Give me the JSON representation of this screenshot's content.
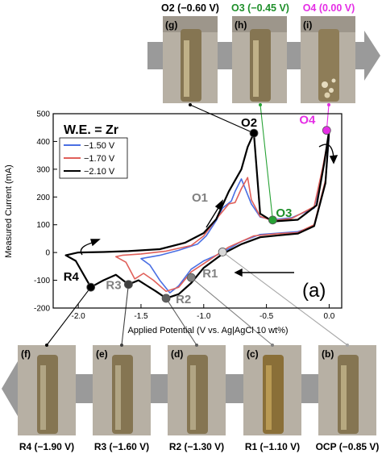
{
  "chart_data": {
    "type": "line",
    "panel_label": "(a)",
    "xlabel": "Applied Potential (V vs. Ag|AgCl 10 wt%)",
    "ylabel": "Measured Current (mA)",
    "xlim": [
      -2.2,
      0.1
    ],
    "ylim": [
      -200,
      500
    ],
    "x_ticks": [
      -2.0,
      -1.5,
      -1.0,
      -0.5,
      0.0
    ],
    "x_tick_labels": [
      "-2.0",
      "-1.5",
      "-1.0",
      "-0.5",
      "0.0"
    ],
    "y_ticks": [
      -200,
      -100,
      0,
      100,
      200,
      300,
      400,
      500
    ],
    "y_tick_labels": [
      "-200",
      "-100",
      "0",
      "100",
      "200",
      "300",
      "400",
      "500"
    ],
    "grid": false,
    "legend_title": "W.E. = Zr",
    "legend_position": "top-left",
    "series": [
      {
        "name": "−1.50 V",
        "color": "#4a6fe3",
        "points": [
          [
            0.0,
            420
          ],
          [
            -0.05,
            300
          ],
          [
            -0.12,
            160
          ],
          [
            -0.3,
            125
          ],
          [
            -0.45,
            118
          ],
          [
            -0.55,
            128
          ],
          [
            -0.62,
            175
          ],
          [
            -0.7,
            265
          ],
          [
            -0.75,
            220
          ],
          [
            -0.78,
            185
          ],
          [
            -0.85,
            160
          ],
          [
            -0.9,
            115
          ],
          [
            -0.98,
            60
          ],
          [
            -1.05,
            30
          ],
          [
            -1.2,
            8
          ],
          [
            -1.35,
            -10
          ],
          [
            -1.5,
            -22
          ],
          [
            -1.43,
            -45
          ],
          [
            -1.35,
            -100
          ],
          [
            -1.27,
            -145
          ],
          [
            -1.2,
            -120
          ],
          [
            -1.1,
            -60
          ],
          [
            -1.0,
            -30
          ],
          [
            -0.85,
            0
          ],
          [
            -0.7,
            40
          ],
          [
            -0.55,
            65
          ],
          [
            -0.4,
            70
          ],
          [
            -0.25,
            75
          ],
          [
            -0.12,
            95
          ],
          [
            -0.03,
            250
          ],
          [
            0.0,
            420
          ]
        ]
      },
      {
        "name": "−1.70 V",
        "color": "#e0605a",
        "points": [
          [
            0.0,
            430
          ],
          [
            -0.05,
            310
          ],
          [
            -0.12,
            165
          ],
          [
            -0.3,
            122
          ],
          [
            -0.45,
            115
          ],
          [
            -0.55,
            130
          ],
          [
            -0.62,
            190
          ],
          [
            -0.65,
            270
          ],
          [
            -0.7,
            230
          ],
          [
            -0.75,
            180
          ],
          [
            -0.8,
            175
          ],
          [
            -0.9,
            120
          ],
          [
            -1.0,
            60
          ],
          [
            -1.1,
            25
          ],
          [
            -1.3,
            5
          ],
          [
            -1.5,
            -5
          ],
          [
            -1.65,
            -10
          ],
          [
            -1.7,
            -15
          ],
          [
            -1.62,
            -35
          ],
          [
            -1.55,
            -95
          ],
          [
            -1.48,
            -75
          ],
          [
            -1.4,
            -100
          ],
          [
            -1.3,
            -140
          ],
          [
            -1.2,
            -125
          ],
          [
            -1.1,
            -70
          ],
          [
            -0.95,
            -25
          ],
          [
            -0.8,
            20
          ],
          [
            -0.6,
            60
          ],
          [
            -0.4,
            68
          ],
          [
            -0.25,
            72
          ],
          [
            -0.12,
            100
          ],
          [
            -0.03,
            260
          ],
          [
            0.0,
            430
          ]
        ]
      },
      {
        "name": "−2.10 V",
        "color": "#000000",
        "points": [
          [
            0.0,
            440
          ],
          [
            -0.04,
            320
          ],
          [
            -0.1,
            170
          ],
          [
            -0.25,
            118
          ],
          [
            -0.45,
            112
          ],
          [
            -0.55,
            140
          ],
          [
            -0.6,
            430
          ],
          [
            -0.65,
            380
          ],
          [
            -0.7,
            300
          ],
          [
            -0.8,
            220
          ],
          [
            -0.9,
            120
          ],
          [
            -1.0,
            70
          ],
          [
            -1.15,
            35
          ],
          [
            -1.35,
            12
          ],
          [
            -1.6,
            5
          ],
          [
            -1.8,
            2
          ],
          [
            -2.0,
            0
          ],
          [
            -2.1,
            -10
          ],
          [
            -2.02,
            -30
          ],
          [
            -1.9,
            -125
          ],
          [
            -1.8,
            -100
          ],
          [
            -1.7,
            -80
          ],
          [
            -1.6,
            -115
          ],
          [
            -1.52,
            -100
          ],
          [
            -1.45,
            -120
          ],
          [
            -1.38,
            -140
          ],
          [
            -1.3,
            -165
          ],
          [
            -1.2,
            -150
          ],
          [
            -1.1,
            -110
          ],
          [
            -1.0,
            -55
          ],
          [
            -0.85,
            -5
          ],
          [
            -0.7,
            30
          ],
          [
            -0.55,
            55
          ],
          [
            -0.4,
            62
          ],
          [
            -0.25,
            68
          ],
          [
            -0.12,
            95
          ],
          [
            -0.03,
            250
          ],
          [
            0.0,
            440
          ]
        ]
      }
    ],
    "annotations": {
      "points": [
        {
          "label": "O2",
          "x": -0.6,
          "y": 430,
          "color": "#000000",
          "label_color": "#000000"
        },
        {
          "label": "O3",
          "x": -0.45,
          "y": 117,
          "color": "#27a235",
          "label_color": "#1e8f2a"
        },
        {
          "label": "O4",
          "x": -0.02,
          "y": 440,
          "color": "#e52ee5",
          "label_color": "#e52ee5"
        },
        {
          "label": "R1",
          "x": -1.1,
          "y": -90,
          "color": "#808080",
          "label_color": "#808080"
        },
        {
          "label": "R2",
          "x": -1.3,
          "y": -165,
          "color": "#606060",
          "label_color": "#808080"
        },
        {
          "label": "R3",
          "x": -1.6,
          "y": -115,
          "color": "#404040",
          "label_color": "#808080"
        },
        {
          "label": "R4",
          "x": -1.9,
          "y": -125,
          "color": "#000000",
          "label_color": "#000000"
        },
        {
          "label": "OCP",
          "x": -0.85,
          "y": 2,
          "color": "#d8d8d8",
          "label_color": "#000000"
        }
      ],
      "text_labels": [
        {
          "text": "O1",
          "color": "#808080"
        }
      ]
    }
  },
  "photos": {
    "top": [
      {
        "panel": "(g)",
        "caption": "O2 (−0.60 V)",
        "caption_color": "#000000"
      },
      {
        "panel": "(h)",
        "caption": "O3 (−0.45 V)",
        "caption_color": "#1e8f2a"
      },
      {
        "panel": "(i)",
        "caption": "O4 (0.00 V)",
        "caption_color": "#e52ee5"
      }
    ],
    "bottom": [
      {
        "panel": "(f)",
        "caption": "R4 (−1.90 V)"
      },
      {
        "panel": "(e)",
        "caption": "R3 (−1.60 V)"
      },
      {
        "panel": "(d)",
        "caption": "R2 (−1.30 V)"
      },
      {
        "panel": "(c)",
        "caption": "R1 (−1.10 V)"
      },
      {
        "panel": "(b)",
        "caption": "OCP (−0.85 V)"
      }
    ]
  },
  "colors": {
    "arrow_band": "#8c8c8c",
    "photo_background": "#b9b2a6",
    "electrode_rod": "#8a7a56"
  }
}
